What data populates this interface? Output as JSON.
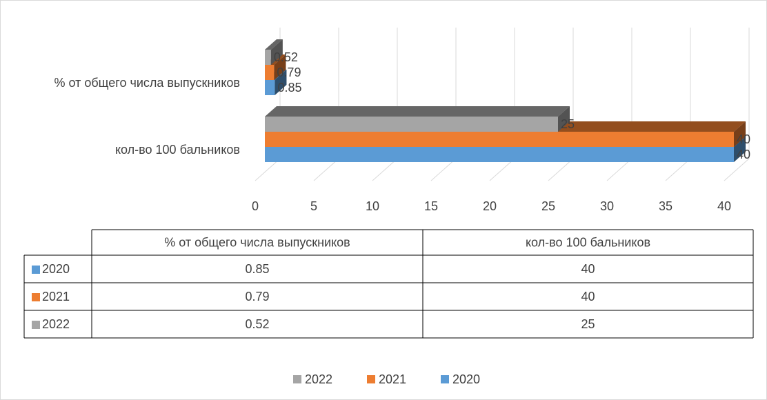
{
  "chart_data": {
    "type": "bar3d_horizontal",
    "categories": [
      "% от общего числа выпускников",
      "кол-во 100 бальников"
    ],
    "series": [
      {
        "name": "2020",
        "color": "#5b9bd5",
        "values": [
          0.85,
          40
        ]
      },
      {
        "name": "2021",
        "color": "#ed7d31",
        "values": [
          0.79,
          40
        ]
      },
      {
        "name": "2022",
        "color": "#a5a5a5",
        "values": [
          0.52,
          25
        ]
      }
    ],
    "xlim": [
      0,
      40
    ],
    "xticks": [
      0,
      5,
      10,
      15,
      20,
      25,
      30,
      35,
      40
    ],
    "grid": true,
    "data_table": true,
    "legend": "bottom"
  }
}
